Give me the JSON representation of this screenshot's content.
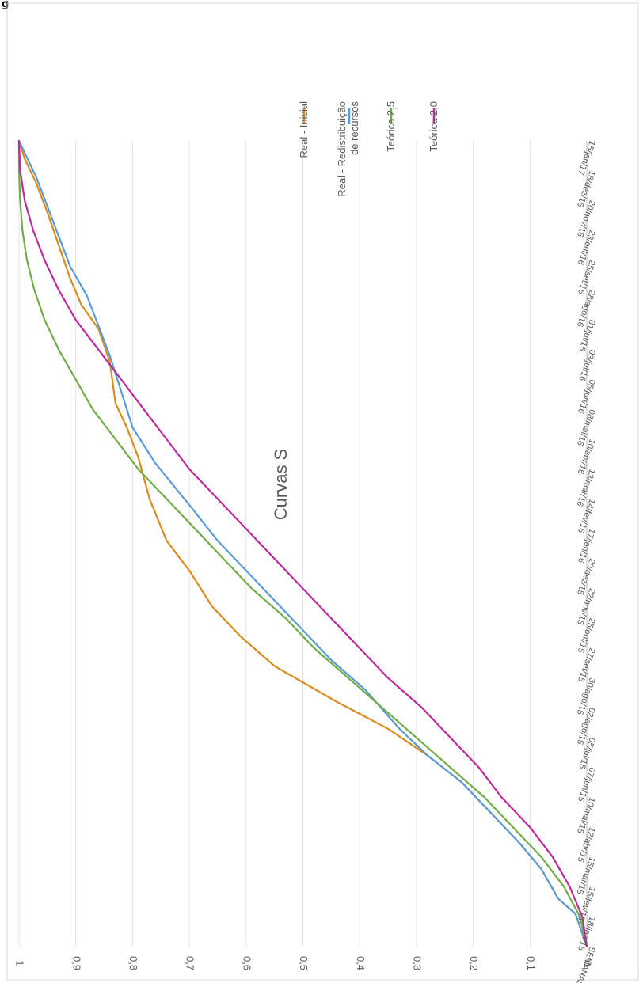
{
  "figure": {
    "label": "g"
  },
  "chart_data": {
    "type": "line",
    "title": "Curvas S",
    "xlabel": "SEMANAS",
    "ylabel": "",
    "ylim": [
      0,
      1
    ],
    "y_ticks": [
      "0",
      "0,1",
      "0,2",
      "0,3",
      "0,4",
      "0,5",
      "0,6",
      "0,7",
      "0,8",
      "0,9",
      "1"
    ],
    "x_ticks": [
      "SEMANAS",
      "18/jan/15",
      "15/fev/15",
      "15/mar/15",
      "12/abr/15",
      "10/mai/15",
      "07/jun/15",
      "05/jul/15",
      "02/ago/15",
      "30/ago/15",
      "27/set/15",
      "25/out/15",
      "22/nov/15",
      "20/dez/15",
      "17/jan/16",
      "14/fev/16",
      "13/mar/16",
      "10/abr/16",
      "08/mai/16",
      "05/jun/16",
      "03/jul/16",
      "31/jul/16",
      "28/ago/16",
      "25/set/16",
      "23/out/16",
      "20/nov/16",
      "18/dez/16",
      "15/jan/17"
    ],
    "grid": true,
    "legend_position": "right",
    "orientation": "rotated-90-clockwise",
    "series": [
      {
        "name": "Real - Inicial",
        "color": "#d98b1c",
        "x": [
          0,
          1.1,
          1.6,
          2.6,
          3.5,
          4.5,
          5.5,
          6.4,
          7.3,
          8.2,
          9.4,
          10.4,
          11.4,
          12.6,
          13.6,
          15.0,
          16.4,
          17.4,
          18.2,
          19.6,
          20.7,
          21.5,
          22.4,
          23.5,
          24.6,
          25.6,
          26.4,
          27.0
        ],
        "values": [
          0,
          0.02,
          0.05,
          0.08,
          0.12,
          0.17,
          0.22,
          0.28,
          0.35,
          0.44,
          0.55,
          0.61,
          0.66,
          0.7,
          0.74,
          0.77,
          0.79,
          0.81,
          0.83,
          0.84,
          0.86,
          0.89,
          0.91,
          0.93,
          0.95,
          0.97,
          0.99,
          1.0
        ]
      },
      {
        "name": "Real - Redistribuição de recursos",
        "color": "#5b9bd5",
        "x": [
          0,
          1.1,
          1.6,
          2.6,
          3.5,
          4.5,
          5.5,
          6.4,
          7.3,
          8.6,
          9.6,
          10.6,
          11.6,
          12.6,
          13.6,
          14.8,
          16.2,
          17.4,
          18.6,
          19.8,
          20.8,
          21.8,
          22.8,
          23.8,
          24.8,
          25.8,
          26.6,
          27.0
        ],
        "values": [
          0,
          0.02,
          0.05,
          0.08,
          0.12,
          0.17,
          0.22,
          0.28,
          0.33,
          0.39,
          0.45,
          0.5,
          0.55,
          0.6,
          0.65,
          0.7,
          0.76,
          0.8,
          0.82,
          0.84,
          0.86,
          0.88,
          0.91,
          0.93,
          0.95,
          0.97,
          0.99,
          1.0
        ]
      },
      {
        "name": "Teórica 2,5",
        "color": "#70ad47",
        "x": [
          0,
          1,
          2,
          3,
          4,
          5,
          6,
          7,
          8,
          9,
          10,
          11,
          12,
          13,
          14,
          15,
          16,
          17,
          18,
          19,
          20,
          21,
          22,
          23,
          24,
          25,
          26,
          27
        ],
        "values": [
          0,
          0.012,
          0.04,
          0.08,
          0.13,
          0.18,
          0.24,
          0.3,
          0.36,
          0.42,
          0.48,
          0.53,
          0.59,
          0.64,
          0.69,
          0.74,
          0.79,
          0.83,
          0.87,
          0.9,
          0.93,
          0.955,
          0.973,
          0.986,
          0.994,
          0.998,
          1.0,
          1.0
        ]
      },
      {
        "name": "Teórica 2,0",
        "color": "#c0299b",
        "x": [
          0,
          1,
          2,
          3,
          4,
          5,
          6,
          7,
          8,
          9,
          10,
          11,
          12,
          13,
          14,
          15,
          16,
          17,
          18,
          19,
          20,
          21,
          22,
          23,
          24,
          25,
          26,
          27
        ],
        "values": [
          0,
          0.008,
          0.03,
          0.06,
          0.1,
          0.15,
          0.19,
          0.24,
          0.29,
          0.35,
          0.4,
          0.45,
          0.5,
          0.55,
          0.6,
          0.65,
          0.7,
          0.74,
          0.78,
          0.82,
          0.86,
          0.9,
          0.93,
          0.955,
          0.975,
          0.99,
          0.998,
          1.0
        ]
      }
    ]
  }
}
